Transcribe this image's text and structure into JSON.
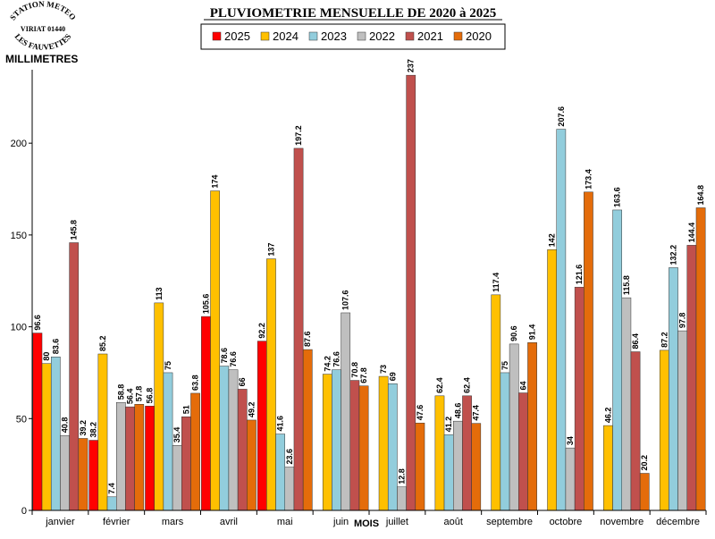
{
  "logo": {
    "top": "STATION METEO",
    "middle": "VIRIAT 01440",
    "bottom": "LES FAUVETTES"
  },
  "chart_data": {
    "type": "bar",
    "title": "PLUVIOMETRIE MENSUELLE DE 2020 à 2025",
    "ylabel": "MILLIMETRES",
    "xlabel": "MOIS",
    "ylim": [
      0,
      240
    ],
    "yticks": [
      0,
      50,
      100,
      150,
      200
    ],
    "legend_position": "top-center",
    "categories": [
      "janvier",
      "février",
      "mars",
      "avril",
      "mai",
      "juin",
      "juillet",
      "août",
      "septembre",
      "octobre",
      "novembre",
      "décembre"
    ],
    "series": [
      {
        "name": "2025",
        "color": "#ff0000",
        "values": [
          96.6,
          38.2,
          56.8,
          105.6,
          92.2,
          null,
          null,
          null,
          null,
          null,
          null,
          null
        ]
      },
      {
        "name": "2024",
        "color": "#ffc000",
        "values": [
          80,
          85.2,
          113,
          174,
          137,
          74.2,
          73,
          62.4,
          117.4,
          142,
          46.2,
          87.2
        ]
      },
      {
        "name": "2023",
        "color": "#92cddc",
        "values": [
          83.6,
          7.4,
          75,
          78.6,
          41.6,
          76.6,
          69,
          41.2,
          75,
          207.6,
          163.6,
          132.2
        ]
      },
      {
        "name": "2022",
        "color": "#bfbfbf",
        "values": [
          40.8,
          58.8,
          35.4,
          76.6,
          23.6,
          107.6,
          12.8,
          48.6,
          90.6,
          34,
          115.8,
          97.8
        ]
      },
      {
        "name": "2021",
        "color": "#c0504d",
        "values": [
          145.8,
          56.4,
          51,
          66,
          197.2,
          70.8,
          237,
          62.4,
          64,
          121.6,
          86.4,
          144.4
        ]
      },
      {
        "name": "2020",
        "color": "#e46c0a",
        "values": [
          39.2,
          57.8,
          63.8,
          49.2,
          87.6,
          67.8,
          47.6,
          47.4,
          91.4,
          173.4,
          20.2,
          164.8
        ]
      }
    ]
  }
}
